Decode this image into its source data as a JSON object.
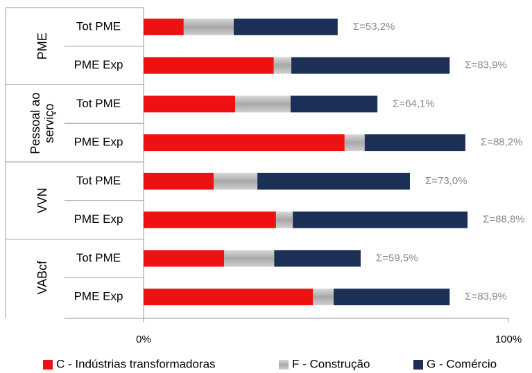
{
  "chart_data": {
    "type": "stacked-bar-horizontal",
    "categories": [
      "Tot PME",
      "PME Exp",
      "Tot PME",
      "PME Exp",
      "Tot PME",
      "PME Exp",
      "Tot PME",
      "PME Exp"
    ],
    "groups": [
      {
        "label": [
          "PME"
        ]
      },
      {
        "label": [
          "Pessoal ao",
          "serviço"
        ]
      },
      {
        "label": [
          "VVN"
        ]
      },
      {
        "label": [
          "VABcf"
        ]
      }
    ],
    "series": [
      {
        "name": "C - Indústrias transformadoras",
        "color": "#ee1111",
        "values": [
          11.0,
          35.7,
          25.1,
          55.1,
          19.2,
          36.3,
          22.1,
          46.4
        ]
      },
      {
        "name": "F - Construção",
        "color": "#b4b4b4",
        "values": [
          13.7,
          4.8,
          15.2,
          5.5,
          12.0,
          4.6,
          13.7,
          5.7
        ]
      },
      {
        "name": "G - Comércio",
        "color": "#1b2f57",
        "values": [
          28.5,
          43.4,
          23.8,
          27.6,
          41.8,
          47.9,
          23.7,
          31.8
        ]
      }
    ],
    "total_labels": [
      "Σ=53,2%",
      "Σ=83,9%",
      "Σ=64,1%",
      "Σ=88,2%",
      "Σ=73,0%",
      "Σ=88,8%",
      "Σ=59,5%",
      "Σ=83,9%"
    ],
    "xlim": [
      0,
      100
    ],
    "xticks": [
      {
        "value": 0,
        "label": "0%"
      },
      {
        "value": 100,
        "label": "100%"
      }
    ],
    "legend": "bottom"
  }
}
